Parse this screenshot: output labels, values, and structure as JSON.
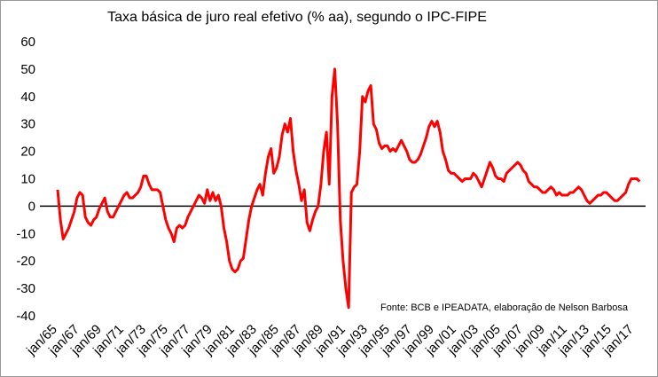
{
  "chart_data": {
    "type": "line",
    "title": "Taxa básica de juro real efetivo (% aa), segundo o IPC-FIPE",
    "annotation": "Fonte: BCB e IPEADATA, elaboração de Nelson Barbosa",
    "categories": [
      "jan/65",
      null,
      null,
      null,
      null,
      null,
      null,
      null,
      "jan/67",
      null,
      null,
      null,
      null,
      null,
      null,
      null,
      "jan/69",
      null,
      null,
      null,
      null,
      null,
      null,
      null,
      "jan/71",
      null,
      null,
      null,
      null,
      null,
      null,
      null,
      "jan/73",
      null,
      null,
      null,
      null,
      null,
      null,
      null,
      "jan/75",
      null,
      null,
      null,
      null,
      null,
      null,
      null,
      "jan/77",
      null,
      null,
      null,
      null,
      null,
      null,
      null,
      "jan/79",
      null,
      null,
      null,
      null,
      null,
      null,
      null,
      "jan/81",
      null,
      null,
      null,
      null,
      null,
      null,
      null,
      "jan/83",
      null,
      null,
      null,
      null,
      null,
      null,
      null,
      "jan/85",
      null,
      null,
      null,
      null,
      null,
      null,
      null,
      "jan/87",
      null,
      null,
      null,
      null,
      null,
      null,
      null,
      "jan/89",
      null,
      null,
      null,
      null,
      null,
      null,
      null,
      "jan/91",
      null,
      null,
      null,
      null,
      null,
      null,
      null,
      "jan/93",
      null,
      null,
      null,
      null,
      null,
      null,
      null,
      "jan/95",
      null,
      null,
      null,
      null,
      null,
      null,
      null,
      "jan/97",
      null,
      null,
      null,
      null,
      null,
      null,
      null,
      "jan/99",
      null,
      null,
      null,
      null,
      null,
      null,
      null,
      "jan/01",
      null,
      null,
      null,
      null,
      null,
      null,
      null,
      "jan/03",
      null,
      null,
      null,
      null,
      null,
      null,
      null,
      "jan/05",
      null,
      null,
      null,
      null,
      null,
      null,
      null,
      "jan/07",
      null,
      null,
      null,
      null,
      null,
      null,
      null,
      "jan/09",
      null,
      null,
      null,
      null,
      null,
      null,
      null,
      "jan/11",
      null,
      null,
      null,
      null,
      null,
      null,
      null,
      "jan/13",
      null,
      null,
      null,
      null,
      null,
      null,
      null,
      "jan/15",
      null,
      null,
      null,
      null,
      null,
      null,
      null,
      "jan/17",
      null,
      null
    ],
    "values": [
      6,
      -5,
      -12,
      -10,
      -8,
      -5,
      -2,
      3,
      5,
      4,
      -4,
      -6,
      -7,
      -5,
      -4,
      -1,
      1,
      3,
      -2,
      -4,
      -4,
      -2,
      0,
      2,
      4,
      5,
      3,
      3,
      4,
      5,
      7,
      11,
      11,
      8,
      6,
      6,
      6,
      5,
      0,
      -5,
      -8,
      -10,
      -13,
      -8,
      -7,
      -8,
      -7,
      -4,
      -2,
      0,
      2,
      4,
      3,
      1,
      6,
      2,
      5,
      2,
      4,
      0,
      -8,
      -13,
      -20,
      -23,
      -24,
      -23,
      -20,
      -19,
      -12,
      -5,
      0,
      3,
      6,
      8,
      4,
      12,
      18,
      21,
      12,
      14,
      18,
      26,
      30,
      27,
      32,
      20,
      13,
      8,
      2,
      6,
      -6,
      -9,
      -5,
      -2,
      0,
      8,
      20,
      27,
      8,
      40,
      50,
      30,
      -5,
      -20,
      -30,
      -37,
      5,
      7,
      8,
      20,
      40,
      38,
      42,
      44,
      30,
      28,
      23,
      21,
      22,
      22,
      20,
      21,
      20,
      22,
      24,
      22,
      20,
      17,
      16,
      16,
      17,
      19,
      22,
      25,
      29,
      31,
      29,
      31,
      27,
      20,
      17,
      13,
      12,
      12,
      11,
      10,
      9,
      10,
      10,
      10,
      12,
      11,
      9,
      7,
      10,
      13,
      16,
      14,
      11,
      10,
      10,
      9,
      12,
      13,
      14,
      15,
      16,
      15,
      13,
      12,
      9,
      8,
      7,
      7,
      6,
      5,
      5,
      6,
      7,
      6,
      4,
      5,
      4,
      4,
      4,
      5,
      5,
      6,
      7,
      6,
      4,
      2,
      1,
      2,
      3,
      4,
      4,
      5,
      5,
      4,
      3,
      2,
      2,
      3,
      4,
      5,
      8,
      10,
      10,
      10,
      9
    ],
    "color": "#ff0000",
    "ylim": [
      -40,
      60
    ],
    "yticks": [
      -40,
      -30,
      -20,
      -10,
      0,
      10,
      20,
      30,
      40,
      50,
      60
    ]
  }
}
